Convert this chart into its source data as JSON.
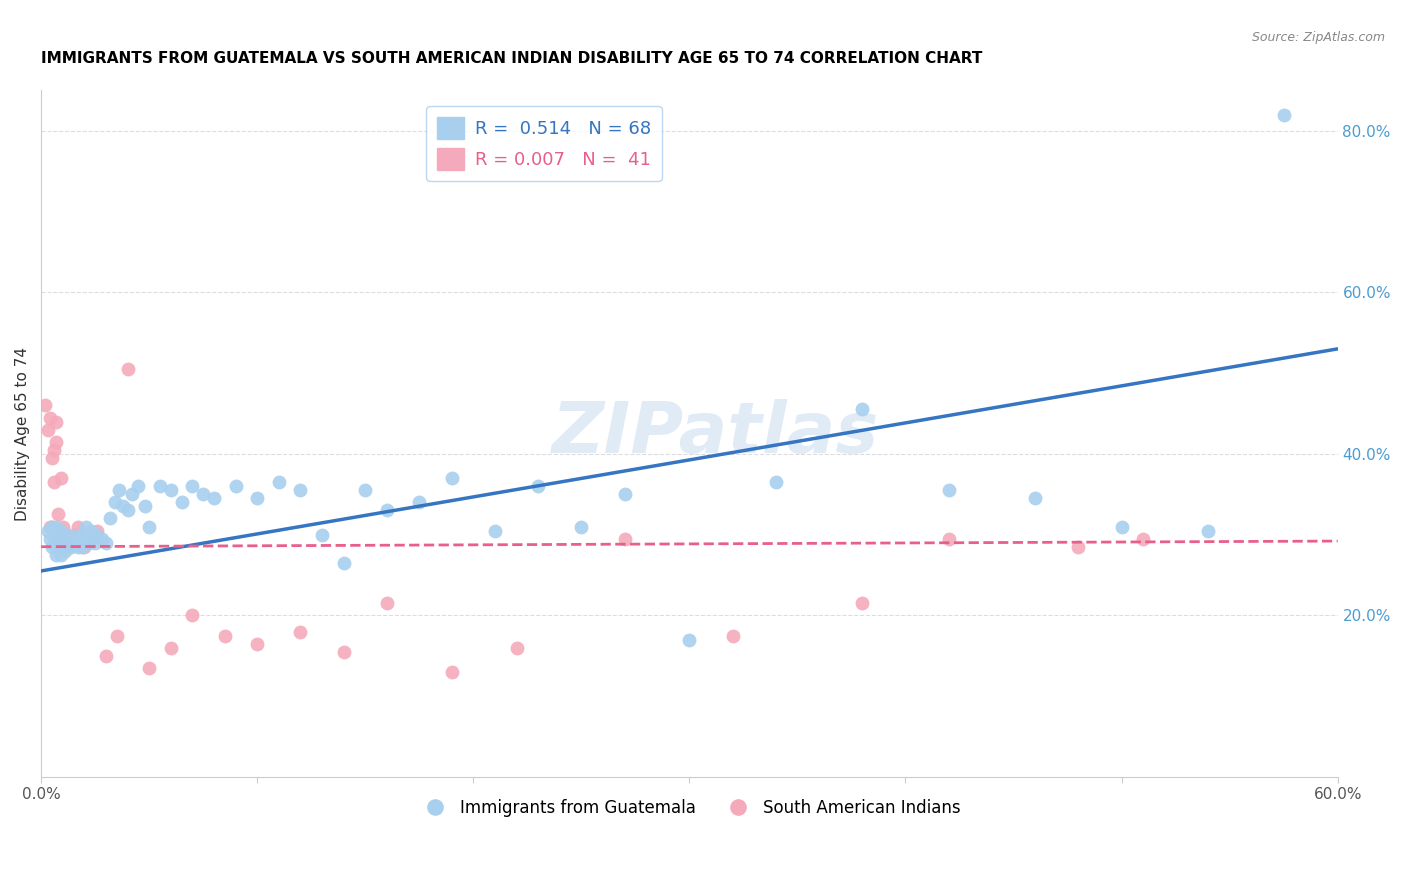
{
  "title": "IMMIGRANTS FROM GUATEMALA VS SOUTH AMERICAN INDIAN DISABILITY AGE 65 TO 74 CORRELATION CHART",
  "source": "Source: ZipAtlas.com",
  "ylabel": "Disability Age 65 to 74",
  "xlim": [
    0.0,
    0.6
  ],
  "ylim": [
    0.0,
    0.85
  ],
  "xticks": [
    0.0,
    0.1,
    0.2,
    0.3,
    0.4,
    0.5,
    0.6
  ],
  "xticklabels": [
    "0.0%",
    "",
    "",
    "",
    "",
    "",
    "60.0%"
  ],
  "yticks_right": [
    0.2,
    0.4,
    0.6,
    0.8
  ],
  "ytick_labels_right": [
    "20.0%",
    "40.0%",
    "60.0%",
    "80.0%"
  ],
  "blue_R": 0.514,
  "blue_N": 68,
  "pink_R": 0.007,
  "pink_N": 41,
  "blue_color": "#A8CFEE",
  "pink_color": "#F4AABB",
  "blue_line_color": "#3575C2",
  "pink_line_color": "#E8608A",
  "watermark": "ZIPatlas",
  "blue_scatter_x": [
    0.003,
    0.004,
    0.005,
    0.005,
    0.006,
    0.006,
    0.007,
    0.007,
    0.008,
    0.008,
    0.009,
    0.009,
    0.01,
    0.01,
    0.011,
    0.012,
    0.013,
    0.014,
    0.015,
    0.016,
    0.017,
    0.018,
    0.019,
    0.02,
    0.021,
    0.022,
    0.023,
    0.025,
    0.026,
    0.028,
    0.03,
    0.032,
    0.034,
    0.036,
    0.038,
    0.04,
    0.042,
    0.045,
    0.048,
    0.05,
    0.055,
    0.06,
    0.065,
    0.07,
    0.075,
    0.08,
    0.09,
    0.1,
    0.11,
    0.12,
    0.13,
    0.14,
    0.15,
    0.16,
    0.175,
    0.19,
    0.21,
    0.23,
    0.25,
    0.27,
    0.3,
    0.34,
    0.38,
    0.42,
    0.46,
    0.5,
    0.54,
    0.575
  ],
  "blue_scatter_y": [
    0.305,
    0.295,
    0.31,
    0.285,
    0.3,
    0.29,
    0.31,
    0.275,
    0.29,
    0.295,
    0.305,
    0.275,
    0.285,
    0.295,
    0.28,
    0.295,
    0.3,
    0.285,
    0.29,
    0.295,
    0.285,
    0.3,
    0.285,
    0.295,
    0.31,
    0.29,
    0.305,
    0.29,
    0.3,
    0.295,
    0.29,
    0.32,
    0.34,
    0.355,
    0.335,
    0.33,
    0.35,
    0.36,
    0.335,
    0.31,
    0.36,
    0.355,
    0.34,
    0.36,
    0.35,
    0.345,
    0.36,
    0.345,
    0.365,
    0.355,
    0.3,
    0.265,
    0.355,
    0.33,
    0.34,
    0.37,
    0.305,
    0.36,
    0.31,
    0.35,
    0.17,
    0.365,
    0.455,
    0.355,
    0.345,
    0.31,
    0.305,
    0.82
  ],
  "pink_scatter_x": [
    0.002,
    0.003,
    0.004,
    0.004,
    0.005,
    0.005,
    0.006,
    0.006,
    0.007,
    0.007,
    0.008,
    0.008,
    0.009,
    0.01,
    0.011,
    0.012,
    0.013,
    0.015,
    0.017,
    0.02,
    0.023,
    0.026,
    0.03,
    0.035,
    0.04,
    0.05,
    0.06,
    0.07,
    0.085,
    0.1,
    0.12,
    0.14,
    0.16,
    0.19,
    0.22,
    0.27,
    0.32,
    0.38,
    0.42,
    0.48,
    0.51
  ],
  "pink_scatter_y": [
    0.46,
    0.43,
    0.31,
    0.445,
    0.395,
    0.31,
    0.405,
    0.365,
    0.44,
    0.415,
    0.325,
    0.295,
    0.37,
    0.31,
    0.3,
    0.285,
    0.295,
    0.3,
    0.31,
    0.285,
    0.295,
    0.305,
    0.15,
    0.175,
    0.505,
    0.135,
    0.16,
    0.2,
    0.175,
    0.165,
    0.18,
    0.155,
    0.215,
    0.13,
    0.16,
    0.295,
    0.175,
    0.215,
    0.295,
    0.285,
    0.295
  ],
  "blue_trend": {
    "x_start": 0.0,
    "y_start": 0.255,
    "x_end": 0.6,
    "y_end": 0.53
  },
  "pink_trend": {
    "x_start": 0.0,
    "y_start": 0.285,
    "x_end": 0.6,
    "y_end": 0.292
  },
  "grid_color": "#DDDDDD",
  "spine_color": "#CCCCCC",
  "legend_edge_color": "#AACCEE",
  "title_fontsize": 11,
  "source_fontsize": 9,
  "tick_fontsize": 11,
  "ylabel_fontsize": 11
}
